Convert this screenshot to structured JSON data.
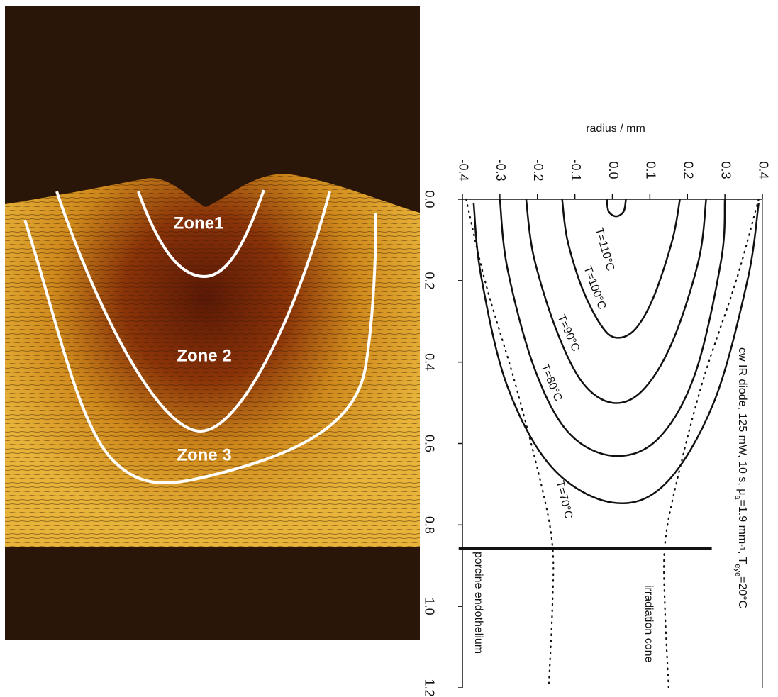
{
  "photo": {
    "zones": [
      "Zone1",
      "Zone 2",
      "Zone 3"
    ]
  },
  "chart_data": {
    "type": "contour",
    "xlabel": "radius / mm",
    "xlim": [
      -0.4,
      0.4
    ],
    "ylim": [
      0,
      1.2
    ],
    "xticks": [
      -0.4,
      -0.3,
      -0.2,
      -0.1,
      {
        "value": 0,
        "label": "0.0"
      },
      0.1,
      0.2,
      0.3,
      0.4
    ],
    "yticks": [
      {
        "value": 0,
        "label": "0.0"
      },
      0.2,
      0.4,
      0.6,
      0.8,
      {
        "value": 1,
        "label": "1.0"
      },
      1.2
    ],
    "color": "#111111",
    "series": [
      {
        "name": "T=110°C",
        "x": [
          -0.015,
          -0.01,
          0.01,
          0.03,
          0.036
        ],
        "values": [
          0,
          0.03,
          0.042,
          0.03,
          0
        ]
      },
      {
        "name": "T=100°C",
        "x": [
          -0.134,
          -0.12,
          -0.08,
          -0.03,
          0.01,
          0.06,
          0.11,
          0.16,
          0.18
        ],
        "values": [
          0,
          0.1,
          0.22,
          0.31,
          0.34,
          0.32,
          0.24,
          0.1,
          0
        ]
      },
      {
        "name": "T=90°C",
        "x": [
          -0.23,
          -0.21,
          -0.15,
          -0.08,
          0,
          0.08,
          0.16,
          0.23,
          0.25
        ],
        "values": [
          0,
          0.14,
          0.32,
          0.45,
          0.5,
          0.47,
          0.35,
          0.15,
          0
        ]
      },
      {
        "name": "T=80°C",
        "x": [
          -0.3,
          -0.28,
          -0.21,
          -0.12,
          0,
          0.12,
          0.22,
          0.29,
          0.3
        ],
        "values": [
          0,
          0.17,
          0.41,
          0.57,
          0.63,
          0.59,
          0.43,
          0.15,
          0
        ]
      },
      {
        "name": "T=70°C",
        "x": [
          -0.37,
          -0.35,
          -0.28,
          -0.16,
          0,
          0.14,
          0.27,
          0.36,
          0.39
        ],
        "values": [
          0.01,
          0.19,
          0.46,
          0.66,
          0.745,
          0.7,
          0.5,
          0.2,
          0.01
        ]
      }
    ],
    "cone": {
      "label": "irradiation cone",
      "left": {
        "x": [
          -0.39,
          -0.34,
          -0.26,
          -0.19,
          -0.16,
          -0.16,
          -0.17
        ],
        "values": [
          0,
          0.2,
          0.45,
          0.7,
          0.85,
          1.0,
          1.2
        ]
      },
      "right": {
        "x": [
          0.39,
          0.33,
          0.24,
          0.17,
          0.14,
          0.14,
          0.15
        ],
        "values": [
          0,
          0.2,
          0.45,
          0.7,
          0.85,
          1.0,
          1.2
        ]
      }
    },
    "endothelium": {
      "label": "porcine endothelium",
      "depth": 0.857,
      "xrange": [
        -0.41,
        0.265
      ]
    },
    "annotation": [
      "cw IR diode, 125 mW, 10 s, μ",
      "a",
      "=1.9 mm",
      "-1",
      ", T",
      "eye",
      "=20°C"
    ]
  }
}
